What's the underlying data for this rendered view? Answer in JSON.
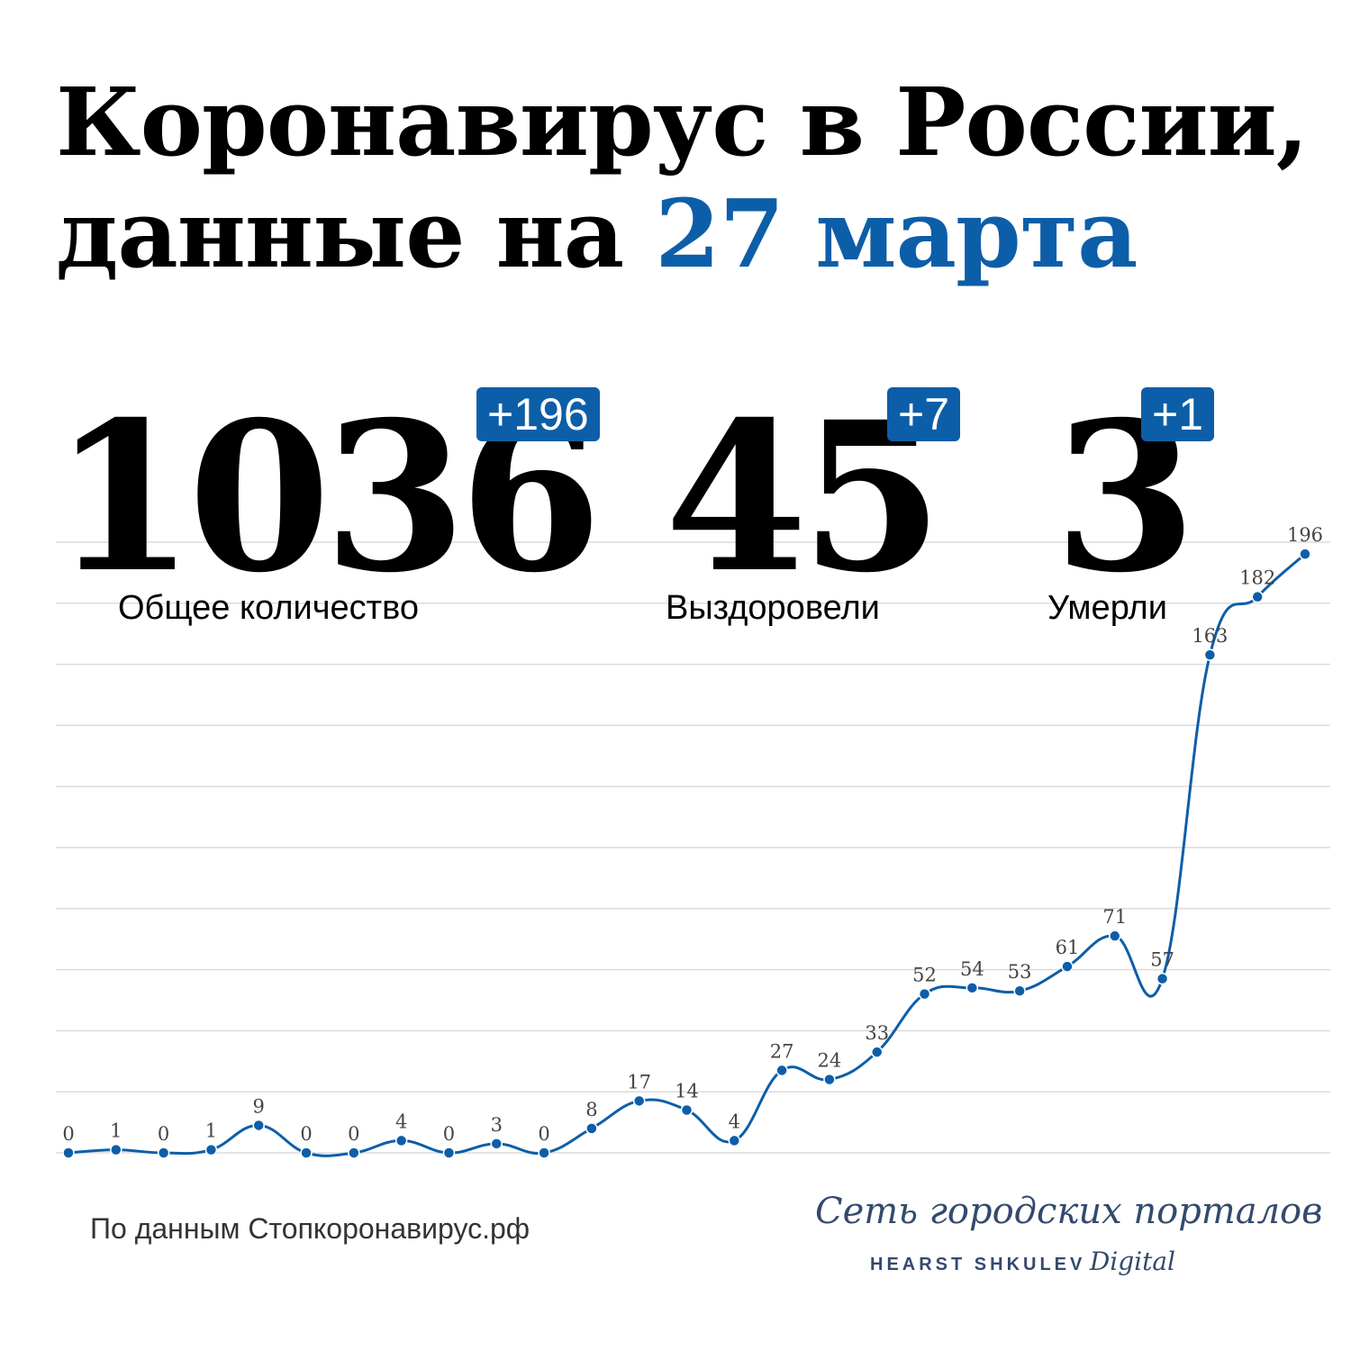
{
  "title": {
    "line1": "Коронавирус в России,",
    "line2_prefix": "данные на ",
    "line2_accent": "27 марта"
  },
  "stats": [
    {
      "value": "1036",
      "delta": "+196",
      "label": "Общее количество"
    },
    {
      "value": "45",
      "delta": "+7",
      "label": "Выздоровели"
    },
    {
      "value": "3",
      "delta": "+1",
      "label": "Умерли"
    }
  ],
  "chart_data": {
    "type": "line",
    "title": "",
    "xlabel": "",
    "ylabel": "",
    "values": [
      0,
      1,
      0,
      1,
      9,
      0,
      0,
      4,
      0,
      3,
      0,
      8,
      17,
      14,
      4,
      27,
      24,
      33,
      52,
      54,
      53,
      61,
      71,
      57,
      163,
      182,
      196
    ],
    "ylim": [
      0,
      200
    ],
    "grid": true,
    "series_color": "#0d5ea8"
  },
  "source": "По данным Стопкоронавирус.рф",
  "brand": {
    "name": "Сеть городских порталов",
    "sub_caps": "HEARST SHKULEV",
    "sub_italic": "Digital"
  },
  "colors": {
    "accent": "#0d5ea8",
    "grid": "#dcdcdc",
    "label": "#444444"
  }
}
